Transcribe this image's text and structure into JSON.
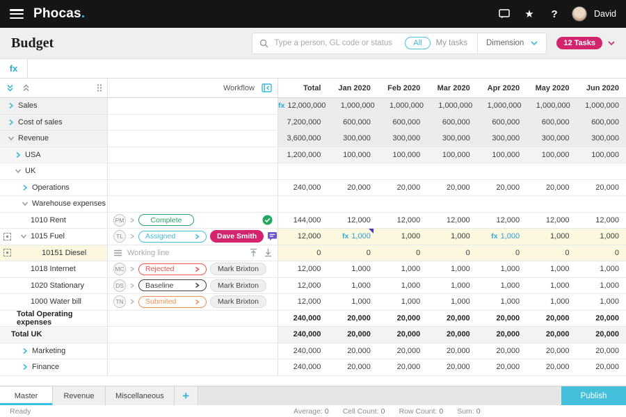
{
  "colors": {
    "accent_cyan": "#3ab7d9",
    "logo_dot_cyan": "#2ec6f0",
    "pink": "#d3246e",
    "purple_comment": "#6f56cf",
    "purple_flag": "#5636b8",
    "green": "#27a567",
    "red": "#ef5350",
    "orange": "#ef9254",
    "yellow_row": "#fcf7df",
    "gray_row": "#ececec",
    "topbar_black": "#151515",
    "publish_cyan": "#45c0dc"
  },
  "topbar": {
    "logo": "Phocas",
    "logo_dot": ".",
    "user": "David"
  },
  "header": {
    "title": "Budget",
    "search_placeholder": "Type a person, GL code or status",
    "filter_all": "All",
    "filter_my_tasks": "My tasks",
    "dimension_label": "Dimension",
    "tasks_badge": "12 Tasks"
  },
  "formula_bar": {
    "fx": "fx",
    "value": ""
  },
  "table": {
    "workflow_header": "Workflow",
    "columns": [
      "Total",
      "Jan 2020",
      "Feb 2020",
      "Mar 2020",
      "Apr 2020",
      "May 2020",
      "Jun 2020"
    ],
    "rows": [
      {
        "label": "Sales",
        "indent": 10,
        "chevron": "collapsed",
        "label_shade": "gray",
        "values_shade": "gray",
        "values": [
          "12,000,000",
          "1,000,000",
          "1,000,000",
          "1,000,000",
          "1,000,000",
          "1,000,000",
          "1,000,000"
        ],
        "fx_cols": [
          0
        ],
        "fx_accent": false
      },
      {
        "label": "Cost of sales",
        "indent": 10,
        "chevron": "collapsed",
        "label_shade": "gray",
        "values_shade": "gray",
        "values": [
          "7,200,000",
          "600,000",
          "600,000",
          "600,000",
          "600,000",
          "600,000",
          "600,000"
        ]
      },
      {
        "label": "Revenue",
        "indent": 10,
        "chevron": "expanded",
        "label_shade": "gray",
        "values_shade": "gray",
        "values": [
          "3,600,000",
          "300,000",
          "300,000",
          "300,000",
          "300,000",
          "300,000",
          "300,000"
        ]
      },
      {
        "label": "USA",
        "indent": 20,
        "chevron": "collapsed",
        "label_shade": "light",
        "values_shade": "light",
        "values": [
          "1,200,000",
          "100,000",
          "100,000",
          "100,000",
          "100,000",
          "100,000",
          "100,000"
        ]
      },
      {
        "label": "UK",
        "indent": 20,
        "chevron": "expanded",
        "label_shade": "white",
        "values_shade": "white",
        "values": []
      },
      {
        "label": "Operations",
        "indent": 30,
        "chevron": "collapsed",
        "label_shade": "white",
        "values_shade": "white",
        "values": [
          "240,000",
          "20,000",
          "20,000",
          "20,000",
          "20,000",
          "20,000",
          "20,000"
        ]
      },
      {
        "label": "Warehouse expenses",
        "indent": 30,
        "chevron": "expanded",
        "label_shade": "white",
        "values_shade": "white",
        "values": []
      },
      {
        "label": "1010 Rent",
        "indent": 28,
        "chevron": null,
        "label_shade": "white",
        "values_shade": "white",
        "workflow": {
          "badge": "PM",
          "status": "Complete",
          "status_color": "green",
          "status_arrow": false,
          "check": "green"
        },
        "values": [
          "144,000",
          "12,000",
          "12,000",
          "12,000",
          "12,000",
          "12,000",
          "12,000"
        ]
      },
      {
        "label": "1015 Fuel",
        "indent": 28,
        "chevron": "expanded",
        "left_icon": true,
        "label_shade": "white",
        "values_shade": "yellow",
        "workflow": {
          "badge": "TL",
          "status": "Assigned",
          "status_color": "cyan",
          "status_arrow": true,
          "assignee": "Dave Smith",
          "assignee_pink": true,
          "comment_icon": true,
          "check": "gray"
        },
        "values": [
          "12,000",
          "1,000",
          "1,000",
          "1,000",
          "1,000",
          "1,000",
          "1,000"
        ],
        "fx_cols": [
          1,
          4
        ],
        "fx_accent": true,
        "flag_col": 1
      },
      {
        "label": "10151 Diesel",
        "indent": 44,
        "chevron": null,
        "left_icon": true,
        "label_shade": "yellow",
        "values_shade": "yellow",
        "workflow": {
          "working_line": true,
          "working_line_label": "Working line",
          "updown_icons": true
        },
        "values": [
          "0",
          "0",
          "0",
          "0",
          "0",
          "0",
          "0"
        ]
      },
      {
        "label": "1018 Internet",
        "indent": 28,
        "chevron": null,
        "label_shade": "white",
        "values_shade": "white",
        "workflow": {
          "badge": "MC",
          "status": "Rejected",
          "status_color": "red",
          "status_arrow": true,
          "assignee": "Mark Brixton",
          "assignee_pink": false
        },
        "values": [
          "12,000",
          "1,000",
          "1,000",
          "1,000",
          "1,000",
          "1,000",
          "1,000"
        ]
      },
      {
        "label": "1020 Stationary",
        "indent": 28,
        "chevron": null,
        "label_shade": "white",
        "values_shade": "white",
        "workflow": {
          "badge": "DS",
          "status": "Baseline",
          "status_color": "black",
          "status_arrow": true,
          "assignee": "Mark Brixton",
          "assignee_pink": false
        },
        "values": [
          "12,000",
          "1,000",
          "1,000",
          "1,000",
          "1,000",
          "1,000",
          "1,000"
        ]
      },
      {
        "label": "1000 Water bill",
        "indent": 28,
        "chevron": null,
        "label_shade": "white",
        "values_shade": "white",
        "workflow": {
          "badge": "TN",
          "status": "Submited",
          "status_color": "orange",
          "status_arrow": true,
          "assignee": "Mark Brixton",
          "assignee_pink": false
        },
        "values": [
          "12,000",
          "1,000",
          "1,000",
          "1,000",
          "1,000",
          "1,000",
          "1,000"
        ]
      },
      {
        "label": "Total Operating expenses",
        "indent": 8,
        "chevron": null,
        "bold": true,
        "label_shade": "white",
        "values_shade": "white",
        "values": [
          "240,000",
          "20,000",
          "20,000",
          "20,000",
          "20,000",
          "20,000",
          "20,000"
        ]
      },
      {
        "label": "Total UK",
        "indent": 0,
        "chevron": null,
        "bold": true,
        "label_shade": "light",
        "values_shade": "light",
        "values": [
          "240,000",
          "20,000",
          "20,000",
          "20,000",
          "20,000",
          "20,000",
          "20,000"
        ]
      },
      {
        "label": "Marketing",
        "indent": 30,
        "chevron": "collapsed",
        "label_shade": "white",
        "values_shade": "white",
        "values": [
          "240,000",
          "20,000",
          "20,000",
          "20,000",
          "20,000",
          "20,000",
          "20,000"
        ]
      },
      {
        "label": "Finance",
        "indent": 30,
        "chevron": "collapsed",
        "label_shade": "white",
        "values_shade": "white",
        "values": [
          "240,000",
          "20,000",
          "20,000",
          "20,000",
          "20,000",
          "20,000",
          "20,000"
        ]
      }
    ]
  },
  "footer": {
    "tabs": [
      "Master",
      "Revenue",
      "Miscellaneous"
    ],
    "active_tab": "Master",
    "add_tab": "+",
    "publish": "Publish"
  },
  "statusbar": {
    "ready": "Ready",
    "stats": [
      {
        "label": "Average:",
        "value": "0"
      },
      {
        "label": "Cell Count:",
        "value": "0"
      },
      {
        "label": "Row Count:",
        "value": "0"
      },
      {
        "label": "Sum:",
        "value": "0"
      }
    ]
  }
}
